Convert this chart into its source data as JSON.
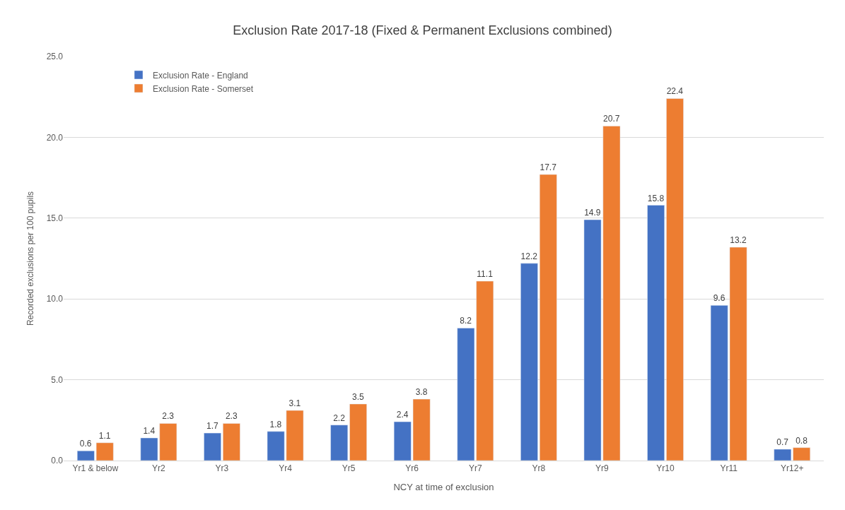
{
  "chart_data": {
    "type": "bar",
    "title": "Exclusion Rate 2017-18 (Fixed & Permanent Exclusions combined)",
    "xlabel": "NCY at time of exclusion",
    "ylabel": "Recorded exclusions per 100 pupils",
    "categories": [
      "Yr1 & below",
      "Yr2",
      "Yr3",
      "Yr4",
      "Yr5",
      "Yr6",
      "Yr7",
      "Yr8",
      "Yr9",
      "Yr10",
      "Yr11",
      "Yr12+"
    ],
    "series": [
      {
        "name": "Exclusion Rate - England",
        "color": "#4472c4",
        "values": [
          0.6,
          1.4,
          1.7,
          1.8,
          2.2,
          2.4,
          8.2,
          12.2,
          14.9,
          15.8,
          9.6,
          0.7
        ]
      },
      {
        "name": "Exclusion Rate - Somerset",
        "color": "#ed7d31",
        "values": [
          1.1,
          2.3,
          2.3,
          3.1,
          3.5,
          3.8,
          11.1,
          17.7,
          20.7,
          22.4,
          13.2,
          0.8
        ]
      }
    ],
    "ylim": [
      0,
      25
    ],
    "yticks": [
      {
        "value": 0,
        "label": "0.0"
      },
      {
        "value": 5,
        "label": "5.0"
      },
      {
        "value": 10,
        "label": "10.0"
      },
      {
        "value": 15,
        "label": "15.0"
      },
      {
        "value": 20,
        "label": "20.0"
      },
      {
        "value": 25,
        "label": "25.0"
      }
    ],
    "grid": "y",
    "legend": "top left",
    "data_labels": true
  }
}
